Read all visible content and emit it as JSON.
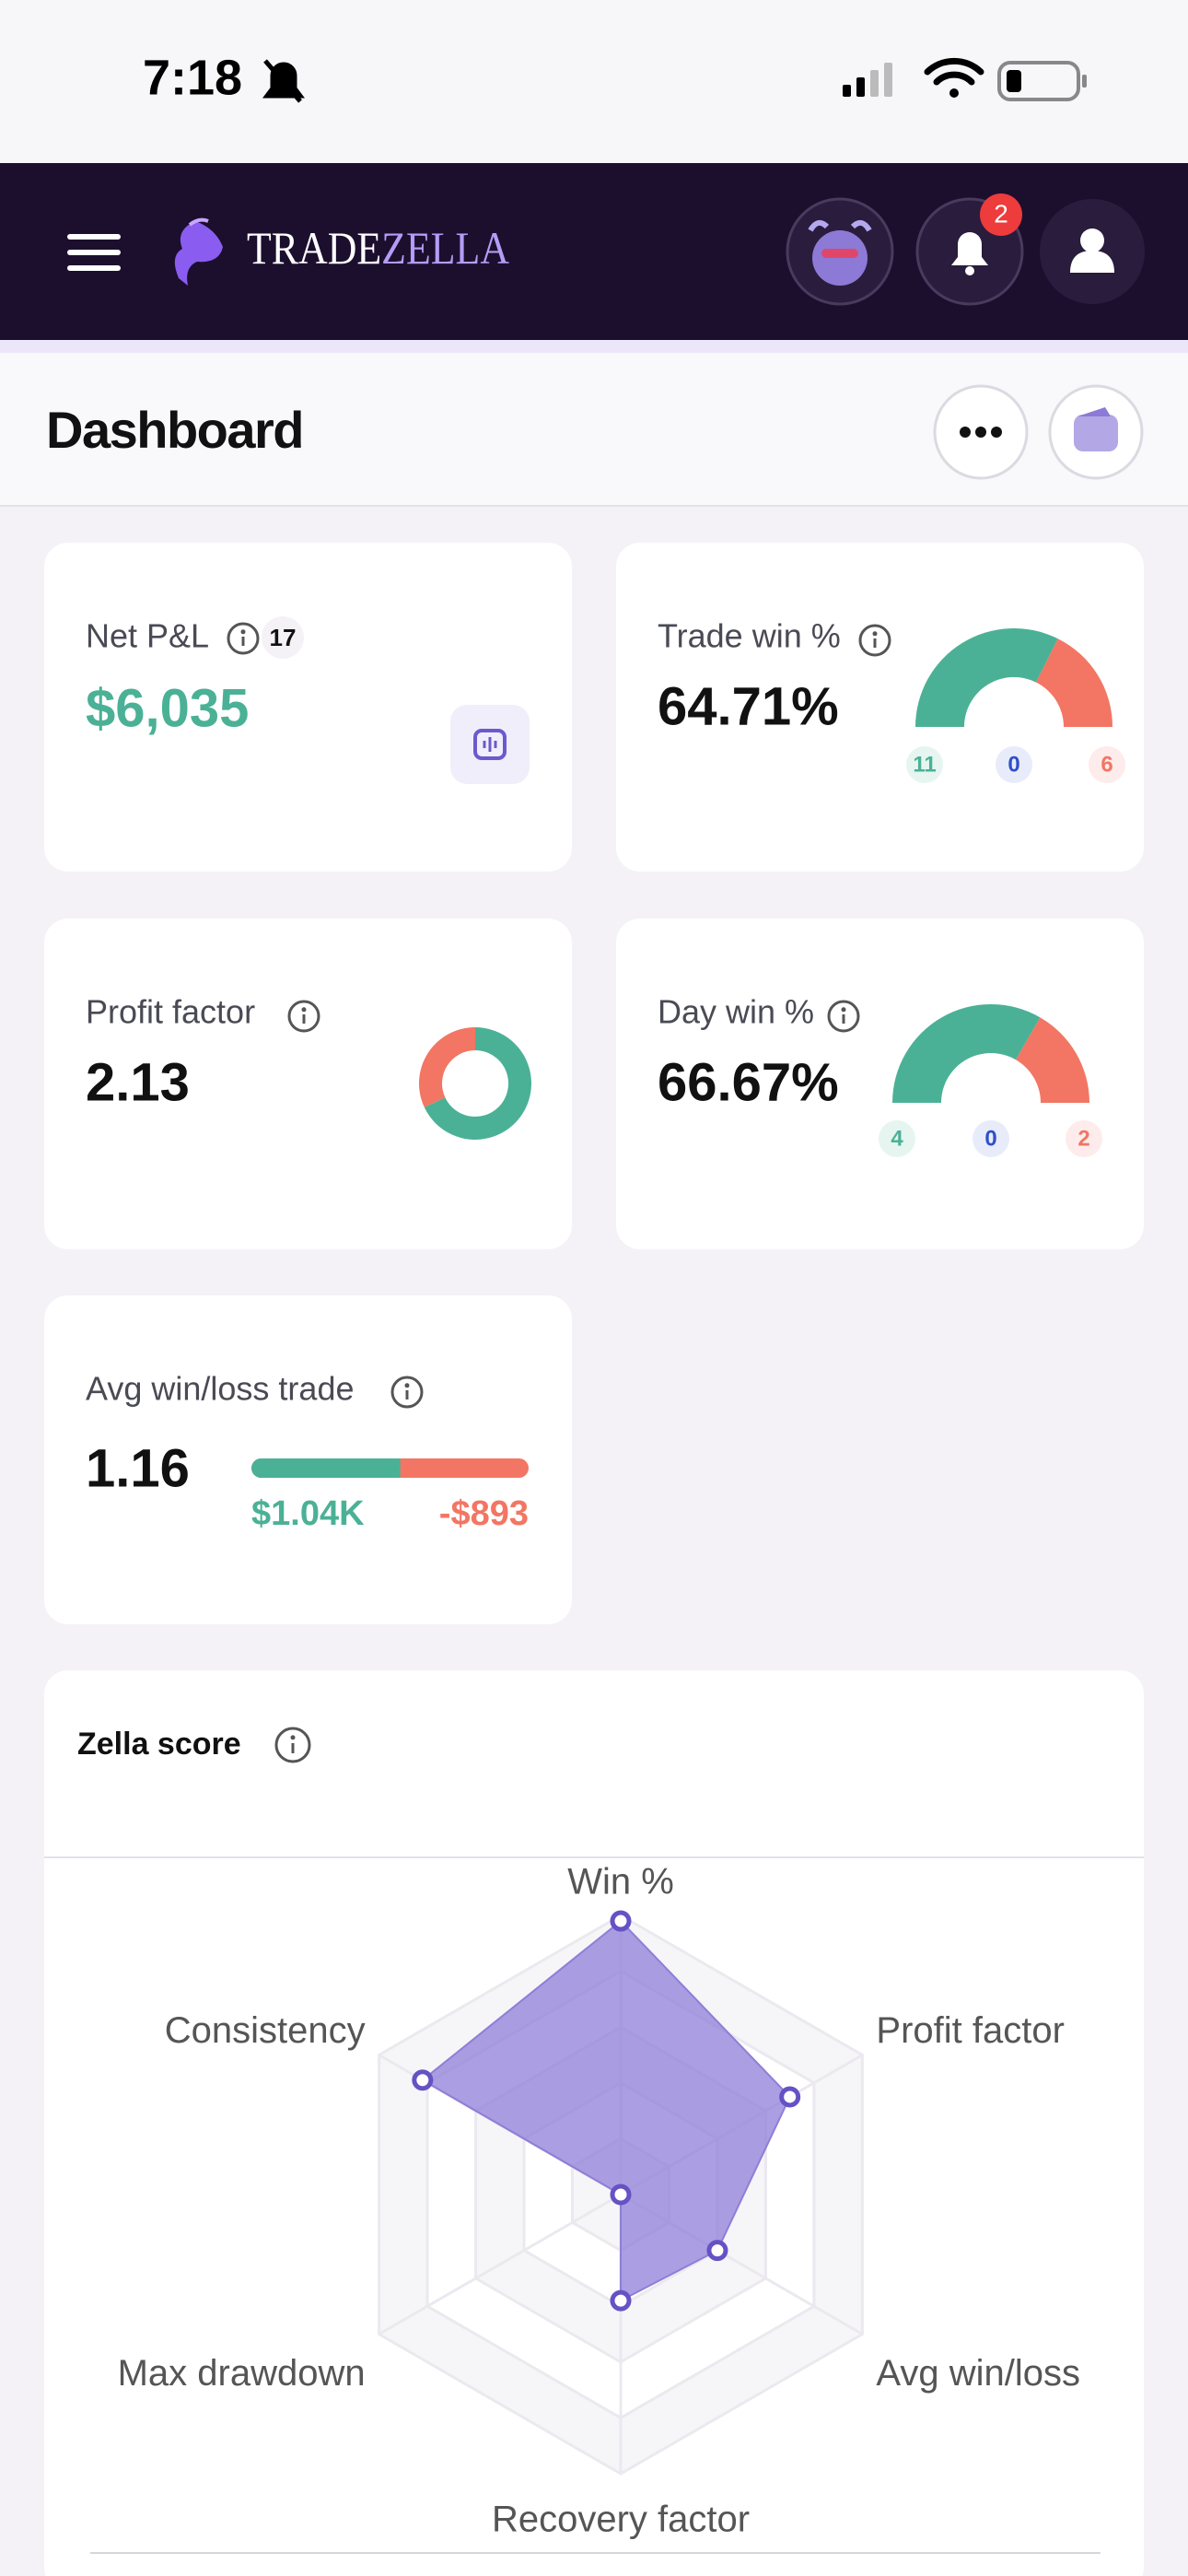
{
  "status_bar": {
    "time": "7:18"
  },
  "header": {
    "logo_left": "TRADE",
    "logo_right": "ZELLA",
    "notification_count": 2
  },
  "page": {
    "title": "Dashboard"
  },
  "cards": {
    "net_pnl": {
      "label": "Net P&L",
      "count": 17,
      "value": "$6,035"
    },
    "trade_win": {
      "label": "Trade win %",
      "value": "64.71%",
      "wins": 11,
      "breakeven": 0,
      "losses": 6
    },
    "profit_factor": {
      "label": "Profit factor",
      "value": 2.13
    },
    "day_win": {
      "label": "Day win %",
      "value": "66.67%",
      "wins": 4,
      "breakeven": 0,
      "losses": 2
    },
    "avg_win_loss": {
      "label": "Avg win/loss trade",
      "value": 1.16,
      "avg_win": "$1.04K",
      "avg_loss": "-$893"
    }
  },
  "zella_score": {
    "title": "Zella score",
    "chart": {
      "type": "radar",
      "categories": [
        "Win %",
        "Profit factor",
        "Avg win/loss",
        "Recovery factor",
        "Max drawdown",
        "Consistency"
      ],
      "values": [
        98,
        70,
        40,
        38,
        0,
        82
      ],
      "rlim": [
        0,
        100
      ],
      "rticks": [
        20,
        40,
        60,
        80,
        100
      ],
      "color": "#8f7ed8"
    }
  }
}
